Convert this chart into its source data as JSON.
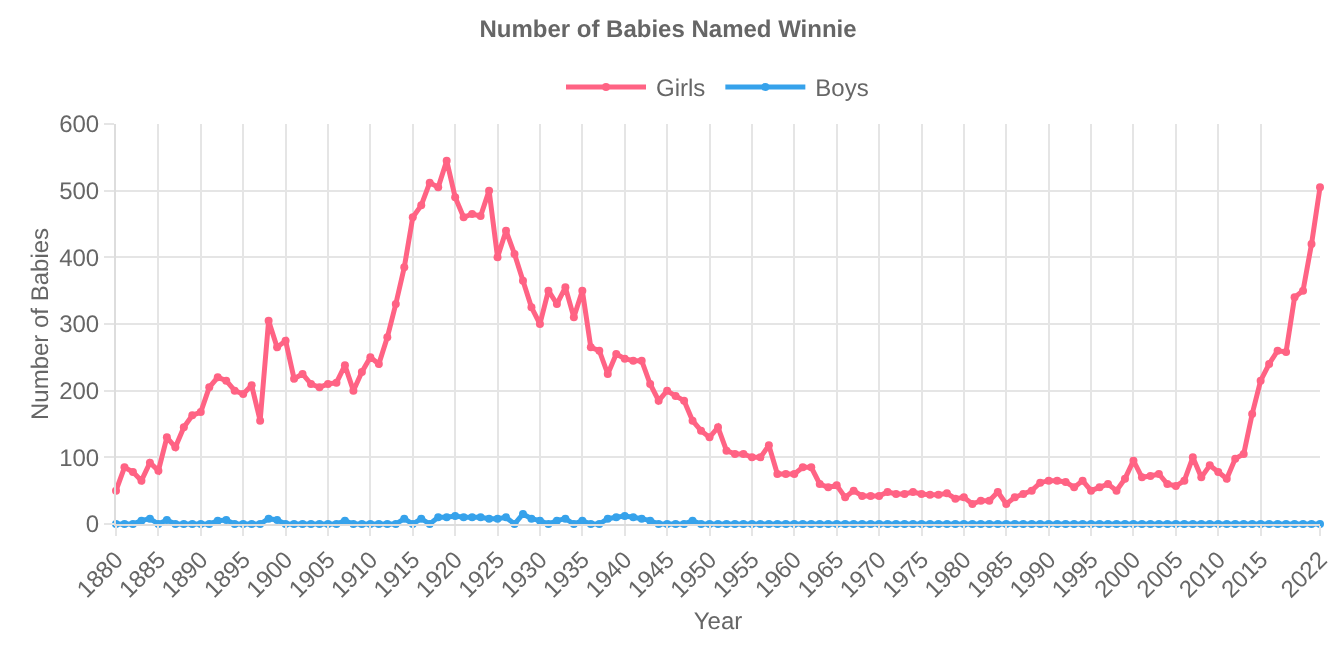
{
  "chart_data": {
    "type": "line",
    "title": "Number of Babies Named Winnie",
    "xlabel": "Year",
    "ylabel": "Number of Babies",
    "x": [
      1880,
      1881,
      1882,
      1883,
      1884,
      1885,
      1886,
      1887,
      1888,
      1889,
      1890,
      1891,
      1892,
      1893,
      1894,
      1895,
      1896,
      1897,
      1898,
      1899,
      1900,
      1901,
      1902,
      1903,
      1904,
      1905,
      1906,
      1907,
      1908,
      1909,
      1910,
      1911,
      1912,
      1913,
      1914,
      1915,
      1916,
      1917,
      1918,
      1919,
      1920,
      1921,
      1922,
      1923,
      1924,
      1925,
      1926,
      1927,
      1928,
      1929,
      1930,
      1931,
      1932,
      1933,
      1934,
      1935,
      1936,
      1937,
      1938,
      1939,
      1940,
      1941,
      1942,
      1943,
      1944,
      1945,
      1946,
      1947,
      1948,
      1949,
      1950,
      1951,
      1952,
      1953,
      1954,
      1955,
      1956,
      1957,
      1958,
      1959,
      1960,
      1961,
      1962,
      1963,
      1964,
      1965,
      1966,
      1967,
      1968,
      1969,
      1970,
      1971,
      1972,
      1973,
      1974,
      1975,
      1976,
      1977,
      1978,
      1979,
      1980,
      1981,
      1982,
      1983,
      1984,
      1985,
      1986,
      1987,
      1988,
      1989,
      1990,
      1991,
      1992,
      1993,
      1994,
      1995,
      1996,
      1997,
      1998,
      1999,
      2000,
      2001,
      2002,
      2003,
      2004,
      2005,
      2006,
      2007,
      2008,
      2009,
      2010,
      2011,
      2012,
      2013,
      2014,
      2015,
      2016,
      2017,
      2018,
      2019,
      2020,
      2021,
      2022
    ],
    "series": [
      {
        "name": "Girls",
        "color": "#ff6384",
        "values": [
          50,
          85,
          78,
          65,
          92,
          80,
          130,
          115,
          145,
          163,
          168,
          205,
          220,
          215,
          200,
          195,
          208,
          155,
          305,
          265,
          275,
          218,
          225,
          210,
          205,
          210,
          212,
          238,
          200,
          228,
          250,
          240,
          280,
          330,
          385,
          460,
          478,
          512,
          505,
          545,
          490,
          460,
          465,
          462,
          500,
          400,
          440,
          405,
          365,
          325,
          300,
          350,
          330,
          355,
          310,
          350,
          265,
          260,
          225,
          255,
          248,
          245,
          245,
          210,
          185,
          200,
          192,
          185,
          155,
          140,
          130,
          145,
          110,
          105,
          105,
          100,
          100,
          118,
          75,
          75,
          75,
          85,
          85,
          60,
          55,
          58,
          40,
          50,
          42,
          42,
          42,
          48,
          45,
          45,
          48,
          45,
          44,
          44,
          46,
          38,
          40,
          30,
          35,
          35,
          48,
          30,
          40,
          45,
          50,
          62,
          65,
          65,
          63,
          55,
          65,
          50,
          55,
          60,
          50,
          68,
          95,
          70,
          72,
          75,
          60,
          57,
          65,
          100,
          70,
          88,
          78,
          68,
          98,
          105,
          165,
          215,
          240,
          260,
          258,
          340,
          350,
          420,
          505
        ]
      },
      {
        "name": "Boys",
        "color": "#36a2eb",
        "values": [
          0,
          0,
          0,
          5,
          8,
          0,
          6,
          0,
          0,
          0,
          0,
          0,
          5,
          6,
          0,
          0,
          0,
          0,
          8,
          6,
          0,
          0,
          0,
          0,
          0,
          0,
          0,
          5,
          0,
          0,
          0,
          0,
          0,
          0,
          8,
          0,
          8,
          0,
          10,
          10,
          12,
          10,
          10,
          10,
          8,
          8,
          10,
          0,
          15,
          8,
          5,
          0,
          5,
          8,
          0,
          5,
          0,
          0,
          8,
          10,
          12,
          10,
          8,
          5,
          0,
          0,
          0,
          0,
          5,
          0,
          0,
          0,
          0,
          0,
          0,
          0,
          0,
          0,
          0,
          0,
          0,
          0,
          0,
          0,
          0,
          0,
          0,
          0,
          0,
          0,
          0,
          0,
          0,
          0,
          0,
          0,
          0,
          0,
          0,
          0,
          0,
          0,
          0,
          0,
          0,
          0,
          0,
          0,
          0,
          0,
          0,
          0,
          0,
          0,
          0,
          0,
          0,
          0,
          0,
          0,
          0,
          0,
          0,
          0,
          0,
          0,
          0,
          0,
          0,
          0,
          0,
          0,
          0,
          0,
          0,
          0,
          0,
          0,
          0,
          0,
          0,
          0,
          0
        ]
      }
    ],
    "xlim": [
      1880,
      2022
    ],
    "xticks": [
      1880,
      1885,
      1890,
      1895,
      1900,
      1905,
      1910,
      1915,
      1920,
      1925,
      1930,
      1935,
      1940,
      1945,
      1950,
      1955,
      1960,
      1965,
      1970,
      1975,
      1980,
      1985,
      1990,
      1995,
      2000,
      2005,
      2010,
      2015,
      2022
    ],
    "ylim": [
      0,
      600
    ],
    "yticks": [
      0,
      100,
      200,
      300,
      400,
      500,
      600
    ],
    "grid": true,
    "legend": "top",
    "marker": "circle",
    "line_style": "solid"
  }
}
